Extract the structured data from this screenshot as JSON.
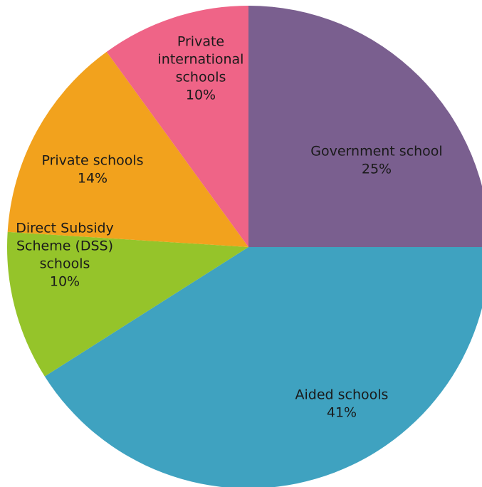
{
  "chart_data": {
    "type": "pie",
    "title": "",
    "start": "12 o'clock",
    "direction": "clockwise",
    "slices": [
      {
        "lines": [
          "Government school",
          "25%"
        ],
        "value": 25,
        "color": "#7a5f8f"
      },
      {
        "lines": [
          "Aided schools",
          "41%"
        ],
        "value": 41,
        "color": "#3fa2c0"
      },
      {
        "lines": [
          "Direct Subsidy",
          "Scheme (DSS)",
          "schools",
          "10%"
        ],
        "value": 10,
        "color": "#95c42a"
      },
      {
        "lines": [
          "Private schools",
          "14%"
        ],
        "value": 14,
        "color": "#f2a21d"
      },
      {
        "lines": [
          "Private",
          "international",
          "schools",
          "10%"
        ],
        "value": 10,
        "color": "#ef6487"
      }
    ]
  }
}
